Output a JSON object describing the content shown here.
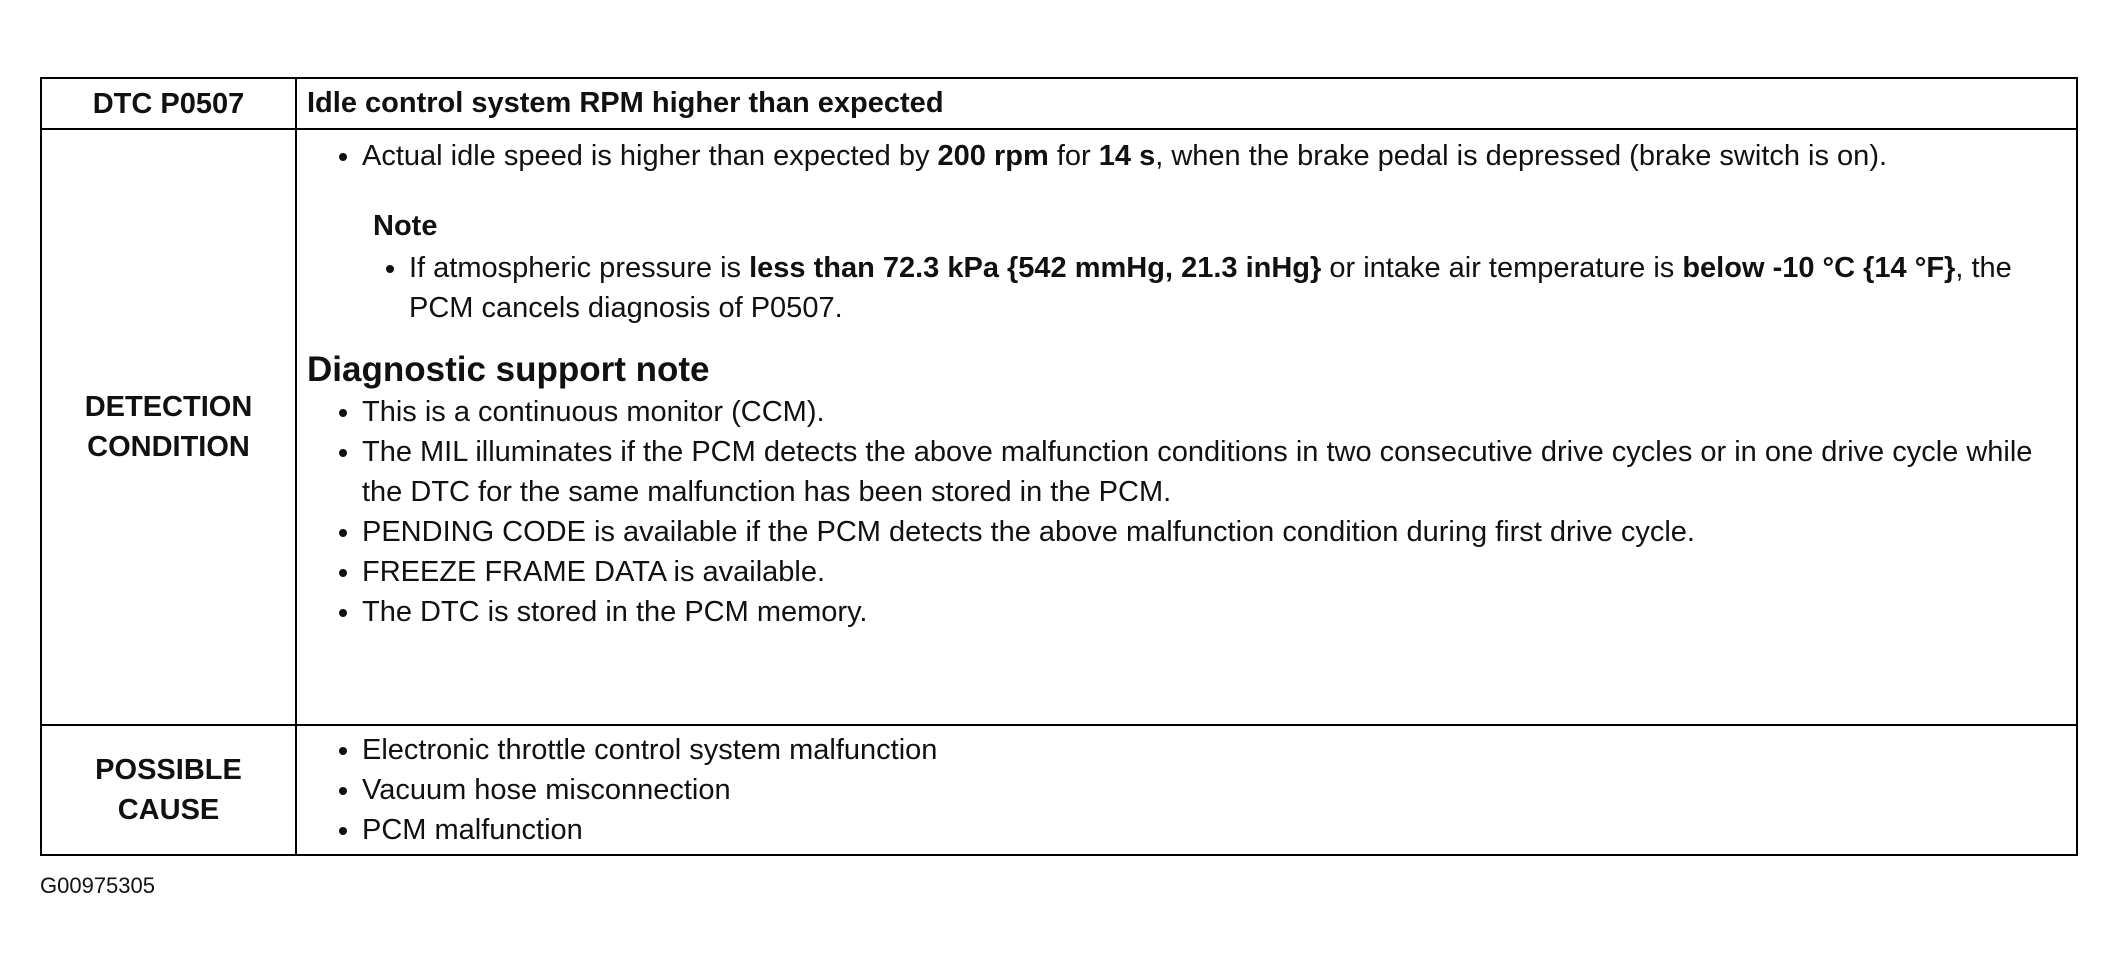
{
  "table": {
    "header": {
      "code": "DTC P0507",
      "description": "Idle control system RPM higher than expected"
    },
    "detection_condition": {
      "label_lines": [
        "DETECTION",
        "CONDITION"
      ],
      "main_bullet": [
        "Actual idle speed is higher than expected by ",
        "200 rpm",
        " for ",
        "14 s",
        ", when the brake pedal is depressed (brake switch is on)."
      ],
      "note": {
        "title": "Note",
        "bullet": [
          "If atmospheric pressure is ",
          "less than 72.3 kPa {542 mmHg, 21.3 inHg}",
          " or intake air temperature is ",
          "below -10 °C {14 °F}",
          ", the PCM cancels diagnosis of P0507."
        ]
      },
      "support_note": {
        "title": "Diagnostic support note",
        "bullets": [
          "This is a continuous monitor (CCM).",
          "The MIL illuminates if the PCM detects the above malfunction conditions in two consecutive drive cycles or in one drive cycle while the DTC for the same malfunction has been stored in the PCM.",
          "PENDING CODE is available if the PCM detects the above malfunction condition during first drive cycle.",
          "FREEZE FRAME DATA is available.",
          "The DTC is stored in the PCM memory."
        ]
      }
    },
    "possible_cause": {
      "label_lines": [
        "POSSIBLE",
        "CAUSE"
      ],
      "bullets": [
        "Electronic throttle control system malfunction",
        "Vacuum hose misconnection",
        "PCM malfunction"
      ]
    }
  },
  "figure_id": "G00975305"
}
